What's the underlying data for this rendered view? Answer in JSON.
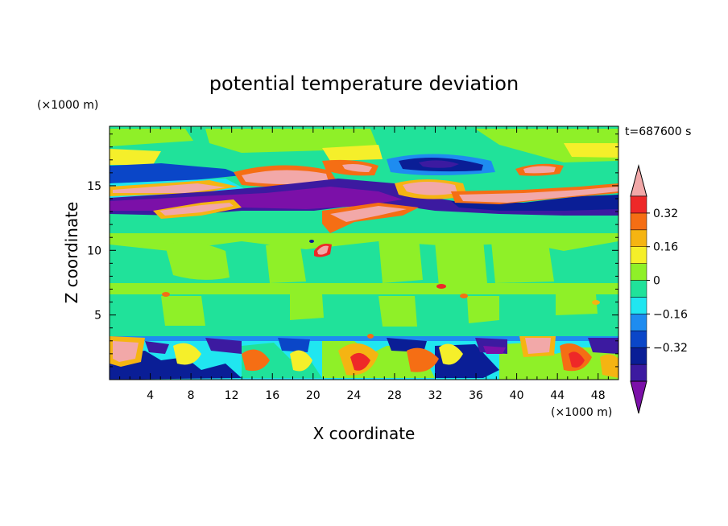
{
  "chart_data": {
    "type": "heatmap",
    "title": "potential temperature deviation",
    "xlabel": "X coordinate",
    "ylabel": "Z coordinate",
    "x_unit": "(×1000 m)",
    "y_unit": "(×1000 m)",
    "time_label": "t=687600 s",
    "xlim": [
      0,
      50
    ],
    "ylim": [
      0,
      19.6
    ],
    "x_ticks": [
      4,
      8,
      12,
      16,
      20,
      24,
      28,
      32,
      36,
      40,
      44,
      48
    ],
    "y_ticks": [
      5,
      10,
      15
    ],
    "colorbar": {
      "levels": [
        -0.48,
        -0.4,
        -0.32,
        -0.24,
        -0.16,
        -0.08,
        0,
        0.08,
        0.16,
        0.24,
        0.32,
        0.4
      ],
      "colors": [
        "#7b10a8",
        "#3c1aa0",
        "#0a1e96",
        "#0a46c8",
        "#1e8cf0",
        "#20e6f0",
        "#20e29a",
        "#8ff028",
        "#f5ef2a",
        "#f5b412",
        "#f56e14",
        "#ee2828",
        "#f2a8a8"
      ],
      "tick_labels": [
        "0.32",
        "0.16",
        "0",
        "−0.16",
        "−0.32"
      ],
      "tick_values": [
        0.32,
        0.16,
        0,
        -0.16,
        -0.32
      ],
      "extend": "both"
    },
    "features": [
      {
        "kind": "cold-band",
        "x_range": [
          0,
          50
        ],
        "z_range": [
          12.8,
          15.2
        ],
        "min_value": -0.45
      },
      {
        "kind": "warm-filament",
        "x_range": [
          0,
          50
        ],
        "z_range": [
          13.0,
          16.5
        ],
        "max_value": 0.45
      },
      {
        "kind": "boundary-layer-turbulence",
        "x_range": [
          0,
          50
        ],
        "z_range": [
          0,
          3.5
        ]
      },
      {
        "kind": "near-neutral-mid-layer",
        "x_range": [
          0,
          50
        ],
        "z_range": [
          3.5,
          12
        ],
        "value_range": [
          0,
          0.08
        ]
      }
    ]
  }
}
